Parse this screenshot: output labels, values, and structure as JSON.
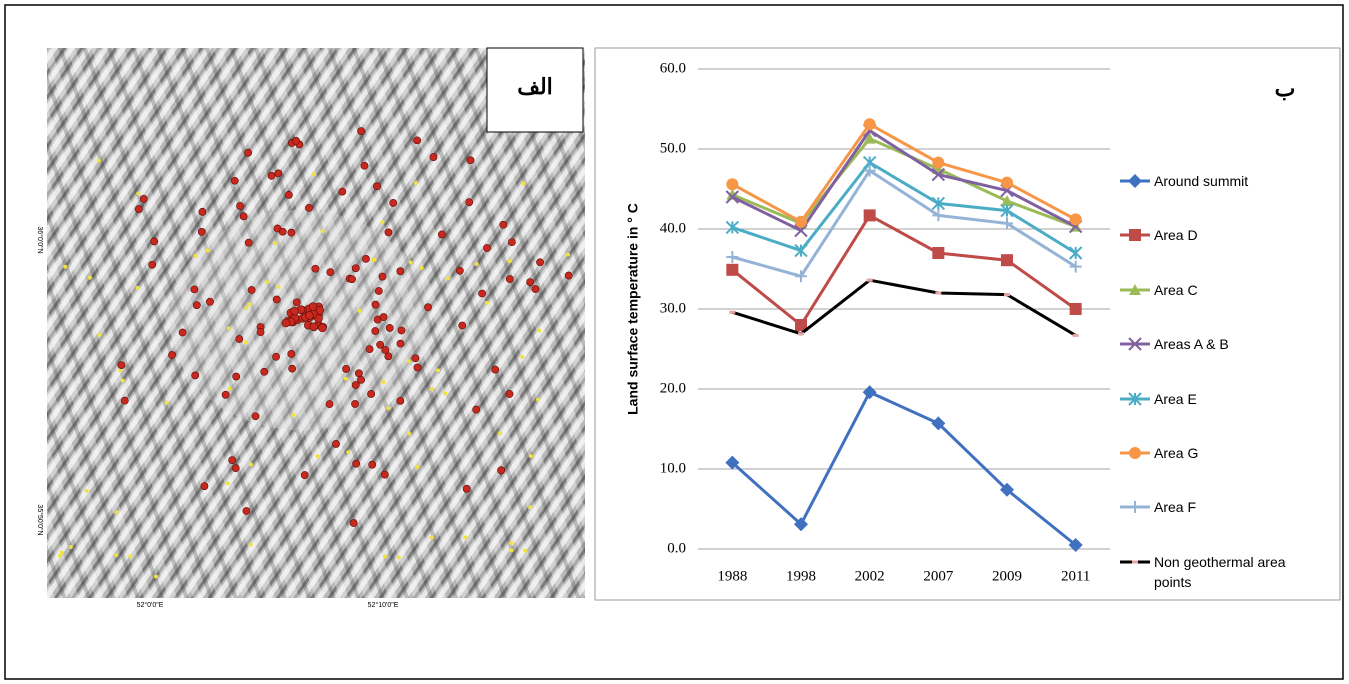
{
  "map": {
    "label": "الف",
    "x_ticks": [
      "52°0'0\"E",
      "52°10'0\"E"
    ],
    "y_ticks": [
      "36°0'0\"N",
      "35°50'0\"N"
    ]
  },
  "chart_data": {
    "type": "line",
    "label": "ب",
    "ylabel": "Land surface temperature in ° C",
    "categories": [
      "1988",
      "1998",
      "2002",
      "2007",
      "2009",
      "2011"
    ],
    "ylim": [
      0,
      60
    ],
    "yticks": [
      {
        "value": 0,
        "label": "0.0"
      },
      {
        "value": 10,
        "label": "10.0"
      },
      {
        "value": 20,
        "label": "20.0"
      },
      {
        "value": 30,
        "label": "30.0"
      },
      {
        "value": 40,
        "label": "40.0"
      },
      {
        "value": 50,
        "label": "50.0"
      },
      {
        "value": 60,
        "label": "60.0"
      }
    ],
    "grid": true,
    "legend": "right",
    "series": [
      {
        "name": "Around summit",
        "color": "#4070c0",
        "marker": "diamond",
        "values": [
          10.8,
          3.1,
          19.6,
          15.7,
          7.4,
          0.5
        ]
      },
      {
        "name": "Area D",
        "color": "#be4b48",
        "marker": "square",
        "values": [
          34.9,
          28.0,
          41.7,
          37.0,
          36.1,
          30.0
        ]
      },
      {
        "name": "Area C",
        "color": "#9bbb59",
        "marker": "triangle",
        "values": [
          44.3,
          40.7,
          51.3,
          47.5,
          43.5,
          40.3
        ]
      },
      {
        "name": "Areas A & B",
        "color": "#7f60a0",
        "marker": "x",
        "values": [
          44.0,
          39.8,
          52.3,
          46.8,
          44.8,
          40.3
        ]
      },
      {
        "name": "Area E",
        "color": "#4bacc6",
        "marker": "asterisk",
        "values": [
          40.2,
          37.3,
          48.3,
          43.2,
          42.3,
          37.0
        ]
      },
      {
        "name": "Area G",
        "color": "#f79646",
        "marker": "circle",
        "values": [
          45.6,
          40.9,
          53.1,
          48.3,
          45.8,
          41.2
        ]
      },
      {
        "name": "Area F",
        "color": "#95b3d7",
        "marker": "plus",
        "values": [
          36.5,
          34.1,
          47.3,
          41.7,
          40.7,
          35.3
        ]
      },
      {
        "name": "Non geothermal area points",
        "color": "#000000",
        "marker": "dash",
        "marker_color": "#e8a3a3",
        "values": [
          29.6,
          26.9,
          33.6,
          32.0,
          31.8,
          26.7
        ]
      }
    ]
  }
}
